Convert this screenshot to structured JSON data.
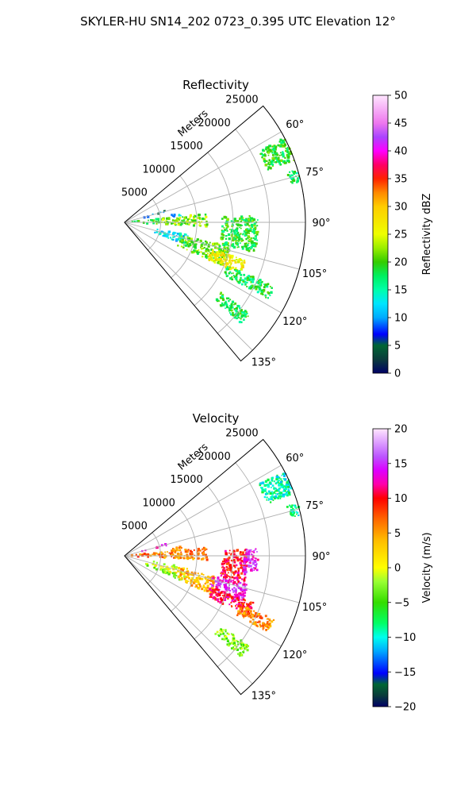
{
  "figure_title": "SKYLER-HU  SN14_202  0723_0.395 UTC Elevation 12°",
  "chart_data": [
    {
      "type": "polar-sector-heatmap",
      "title": "Reflectivity",
      "radial_label": "Meters",
      "radial_ticks": [
        "5000",
        "10000",
        "15000",
        "20000",
        "25000"
      ],
      "radial_tick_values": [
        5000,
        10000,
        15000,
        20000,
        25000
      ],
      "rmax": 25000,
      "angle_ticks": [
        "60°",
        "75°",
        "90°",
        "105°",
        "120°",
        "135°"
      ],
      "angle_tick_values": [
        60,
        75,
        90,
        105,
        120,
        135
      ],
      "angle_range": [
        50,
        140
      ],
      "grid": true,
      "colorbar": {
        "label": "Reflectivity dBZ",
        "min": 0,
        "max": 50,
        "ticks": [
          "0",
          "5",
          "10",
          "15",
          "20",
          "25",
          "30",
          "35",
          "40",
          "45",
          "50"
        ],
        "tick_values": [
          0,
          5,
          10,
          15,
          20,
          25,
          30,
          35,
          40,
          45,
          50
        ]
      },
      "regions": [
        {
          "az": [
            62,
            70
          ],
          "r": [
            21000,
            25000
          ],
          "value": 19
        },
        {
          "az": [
            73,
            77
          ],
          "r": [
            23500,
            25000
          ],
          "value": 17
        },
        {
          "az": [
            74,
            77
          ],
          "r": [
            2500,
            6000
          ],
          "value": 8
        },
        {
          "az": [
            81,
            84
          ],
          "r": [
            6500,
            8000
          ],
          "value": 12
        },
        {
          "az": [
            84,
            93
          ],
          "r": [
            300,
            5000
          ],
          "value": 19
        },
        {
          "az": [
            84,
            93
          ],
          "r": [
            5000,
            11500
          ],
          "value": 22
        },
        {
          "az": [
            87,
            103
          ],
          "r": [
            13500,
            18500
          ],
          "value": 19
        },
        {
          "az": [
            101,
            110
          ],
          "r": [
            4000,
            9000
          ],
          "value": 12
        },
        {
          "az": [
            103,
            114
          ],
          "r": [
            8000,
            15000
          ],
          "value": 21
        },
        {
          "az": [
            107,
            114
          ],
          "r": [
            12500,
            17500
          ],
          "value": 27
        },
        {
          "az": [
            113,
            118
          ],
          "r": [
            15500,
            22500
          ],
          "value": 18
        },
        {
          "az": [
            126,
            131
          ],
          "r": [
            16500,
            21500
          ],
          "value": 18
        }
      ]
    },
    {
      "type": "polar-sector-heatmap",
      "title": "Velocity",
      "radial_label": "Meters",
      "radial_ticks": [
        "5000",
        "10000",
        "15000",
        "20000",
        "25000"
      ],
      "radial_tick_values": [
        5000,
        10000,
        15000,
        20000,
        25000
      ],
      "rmax": 25000,
      "angle_ticks": [
        "60°",
        "75°",
        "90°",
        "105°",
        "120°",
        "135°"
      ],
      "angle_tick_values": [
        60,
        75,
        90,
        105,
        120,
        135
      ],
      "angle_range": [
        50,
        140
      ],
      "grid": true,
      "colorbar": {
        "label": "Velocity (m/s)",
        "min": -20,
        "max": 20,
        "ticks": [
          "−20",
          "−15",
          "−10",
          "−5",
          "0",
          "5",
          "10",
          "15",
          "20"
        ],
        "tick_values": [
          -20,
          -15,
          -10,
          -5,
          0,
          5,
          10,
          15,
          20
        ]
      },
      "regions": [
        {
          "az": [
            62,
            70
          ],
          "r": [
            21000,
            25000
          ],
          "value": -9
        },
        {
          "az": [
            73,
            77
          ],
          "r": [
            23500,
            25000
          ],
          "value": -9
        },
        {
          "az": [
            74,
            77
          ],
          "r": [
            2500,
            6000
          ],
          "value": 14
        },
        {
          "az": [
            81,
            84
          ],
          "r": [
            6500,
            8000
          ],
          "value": 7
        },
        {
          "az": [
            84,
            93
          ],
          "r": [
            300,
            5000
          ],
          "value": 7
        },
        {
          "az": [
            84,
            93
          ],
          "r": [
            5000,
            11500
          ],
          "value": 6
        },
        {
          "az": [
            87,
            103
          ],
          "r": [
            13500,
            17000
          ],
          "value": 10
        },
        {
          "az": [
            87,
            98
          ],
          "r": [
            16500,
            18500
          ],
          "value": 14
        },
        {
          "az": [
            101,
            110
          ],
          "r": [
            4000,
            9000
          ],
          "value": 0
        },
        {
          "az": [
            109,
            114
          ],
          "r": [
            3000,
            9000
          ],
          "value": -3
        },
        {
          "az": [
            103,
            114
          ],
          "r": [
            8000,
            13000
          ],
          "value": 4
        },
        {
          "az": [
            103,
            112
          ],
          "r": [
            12500,
            17500
          ],
          "value": 14
        },
        {
          "az": [
            110,
            116
          ],
          "r": [
            13000,
            19000
          ],
          "value": 10
        },
        {
          "az": [
            113,
            118
          ],
          "r": [
            17500,
            22500
          ],
          "value": 6
        },
        {
          "az": [
            126,
            131
          ],
          "r": [
            16500,
            21500
          ],
          "value": -3
        }
      ]
    }
  ]
}
